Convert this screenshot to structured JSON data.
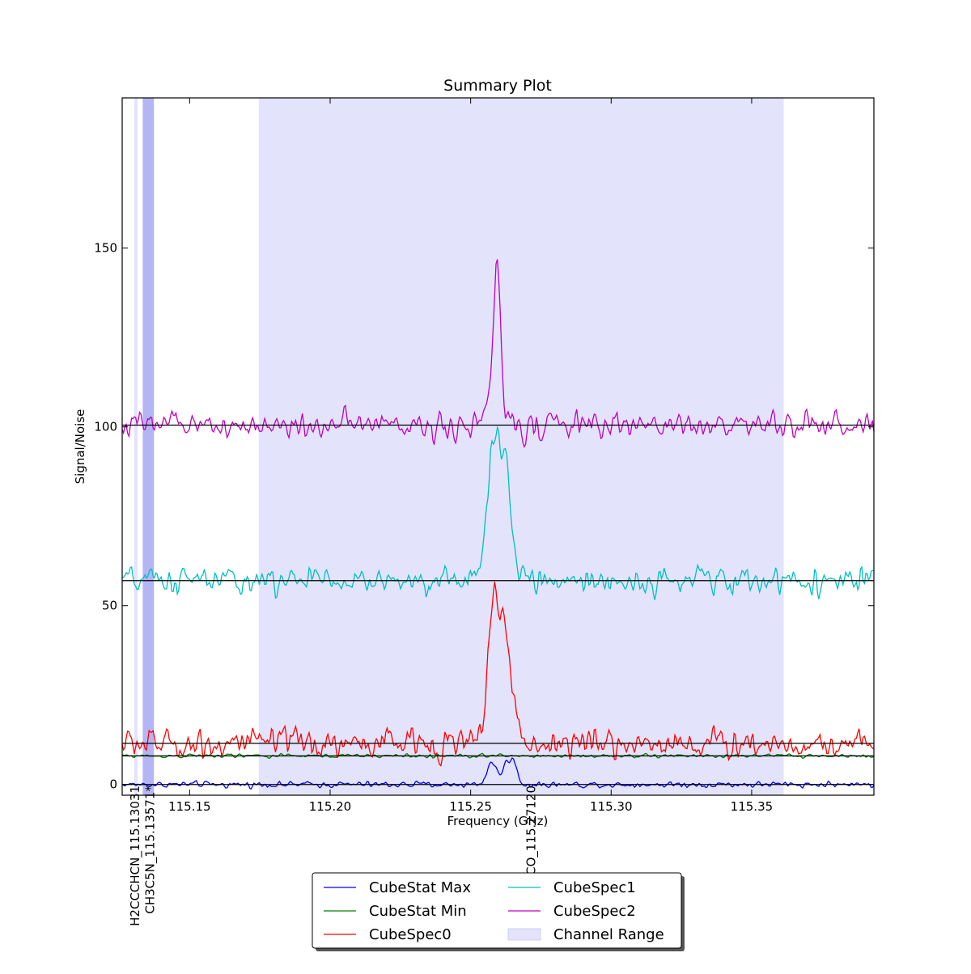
{
  "chart_data": {
    "type": "line",
    "title": "Summary Plot",
    "xlabel": "Frequency (GHz)",
    "ylabel": "Signal/Noise",
    "xlim": [
      115.126,
      115.3935
    ],
    "ylim": [
      -3,
      192
    ],
    "x_ticks": [
      115.15,
      115.2,
      115.25,
      115.3,
      115.35
    ],
    "x_tick_labels": [
      "115.15",
      "115.20",
      "115.25",
      "115.30",
      "115.35"
    ],
    "y_ticks": [
      0,
      50,
      100,
      150
    ],
    "y_tick_labels": [
      "0",
      "50",
      "100",
      "150"
    ],
    "grid": false,
    "legend_position": "below plot, center",
    "series": [
      {
        "name": "CubeStat Max",
        "color": "#0000ff",
        "baseline": 0.0,
        "noise": 0.45,
        "noise_range": [
          115.126,
          115.3935
        ],
        "peaks": [
          {
            "center": 115.2575,
            "width": 0.0016,
            "height": 6.5
          },
          {
            "center": 115.2627,
            "width": 0.0014,
            "height": 6.0
          },
          {
            "center": 115.2655,
            "width": 0.0012,
            "height": 5.8
          }
        ]
      },
      {
        "name": "CubeStat Min",
        "color": "#008000",
        "baseline": 8.0,
        "noise": 0.3,
        "noise_range": [
          115.126,
          115.3935
        ],
        "peaks": []
      },
      {
        "name": "CubeSpec0",
        "color": "#ff0000",
        "baseline": 11.5,
        "noise": 2.2,
        "noise_range": [
          115.126,
          115.3935
        ],
        "peaks": [
          {
            "center": 115.2585,
            "width": 0.0022,
            "height": 43
          },
          {
            "center": 115.2625,
            "width": 0.0012,
            "height": 20
          },
          {
            "center": 115.2648,
            "width": 0.002,
            "height": 11
          }
        ]
      },
      {
        "name": "CubeSpec1",
        "color": "#00bfbf",
        "baseline": 57.0,
        "noise": 2.0,
        "noise_range": [
          115.126,
          115.3935
        ],
        "peaks": [
          {
            "center": 115.2585,
            "width": 0.0024,
            "height": 42
          },
          {
            "center": 115.2625,
            "width": 0.0014,
            "height": 18
          },
          {
            "center": 115.2648,
            "width": 0.0018,
            "height": 9
          }
        ]
      },
      {
        "name": "CubeSpec2",
        "color": "#bf00bf",
        "baseline": 100.5,
        "noise": 2.0,
        "noise_range": [
          115.126,
          115.3935
        ],
        "peaks": [
          {
            "center": 115.2595,
            "width": 0.0012,
            "height": 44
          },
          {
            "center": 115.257,
            "width": 0.0016,
            "height": 7
          }
        ]
      }
    ],
    "baselines": [
      0.0,
      8.0,
      11.5,
      57.0,
      100.5
    ],
    "channel_range": {
      "name": "Channel Range",
      "color": "#e3e3fb",
      "ranges": [
        [
          115.1305,
          115.1315
        ],
        [
          115.1746,
          115.3614
        ]
      ]
    },
    "line_markers": [
      {
        "label": "H2CCCHCN_115.13031",
        "freq": 115.1303,
        "band": [
          115.1303,
          115.1313
        ],
        "band_color": "#e3e3fb",
        "label_color": "#000000"
      },
      {
        "label": "CH3C5N_115.13571*",
        "freq": 115.1357,
        "band": [
          115.1333,
          115.1373
        ],
        "band_color": "#b5b5f6",
        "label_color": "#000000"
      },
      {
        "label": "CO_115.27120",
        "freq": 115.2712,
        "band": null,
        "band_color": null,
        "label_color": "#000000"
      }
    ]
  }
}
